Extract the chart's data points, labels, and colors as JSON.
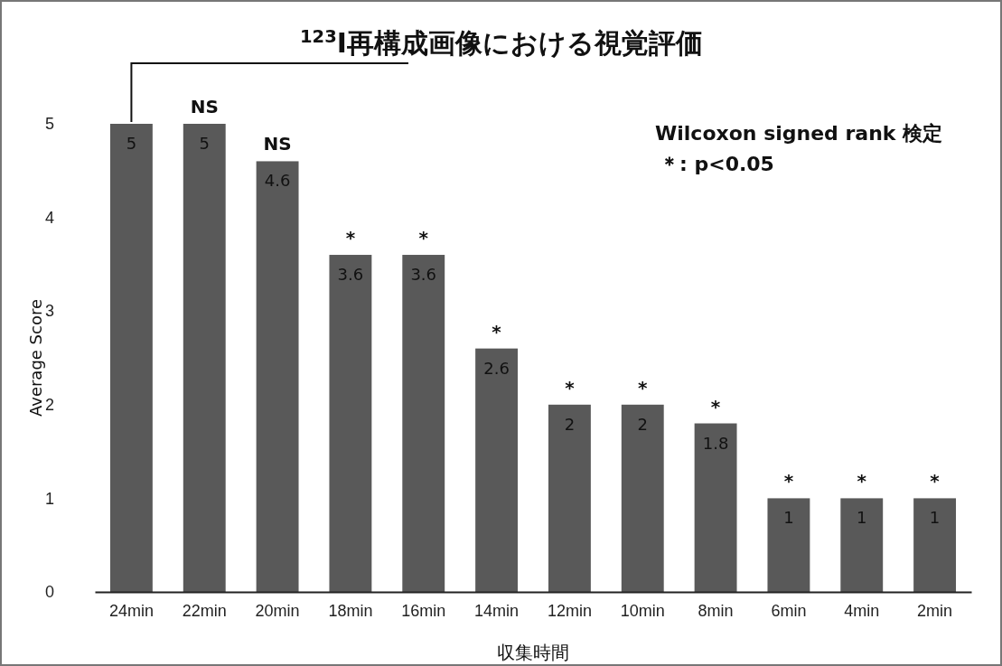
{
  "chart_data": {
    "type": "bar",
    "title": "$^{123}$I再構成画像における視覚評価",
    "xlabel": "収集時間",
    "ylabel": "Average Score",
    "categories": [
      "24min",
      "22min",
      "20min",
      "18min",
      "16min",
      "14min",
      "12min",
      "10min",
      "8min",
      "6min",
      "4min",
      "2min"
    ],
    "values": [
      5,
      5,
      4.6,
      3.6,
      3.6,
      2.6,
      2,
      2,
      1.8,
      1,
      1,
      1
    ],
    "color": "#595959",
    "ylim": [
      0,
      5
    ],
    "yticks": [
      0,
      1,
      2,
      3,
      4,
      5
    ],
    "grid": false,
    "data_labels": true,
    "annotations": [
      "Wilcoxon signed rank 検定",
      "＊: p<0.05",
      {
        "text": "NS",
        "x": "22min",
        "y": 5
      },
      {
        "text": "NS",
        "x": "20min",
        "y": 4.6
      },
      {
        "text": "*",
        "x": "18min",
        "y": 3.6
      },
      {
        "text": "*",
        "x": "16min",
        "y": 3.6
      },
      {
        "text": "*",
        "x": "14min",
        "y": 2.6
      },
      {
        "text": "*",
        "x": "12min",
        "y": 2
      },
      {
        "text": "*",
        "x": "10min",
        "y": 2
      },
      {
        "text": "*",
        "x": "8min",
        "y": 1.8
      },
      {
        "text": "*",
        "x": "6min",
        "y": 1
      },
      {
        "text": "*",
        "x": "4min",
        "y": 1
      },
      {
        "text": "*",
        "x": "2min",
        "y": 1
      }
    ]
  }
}
